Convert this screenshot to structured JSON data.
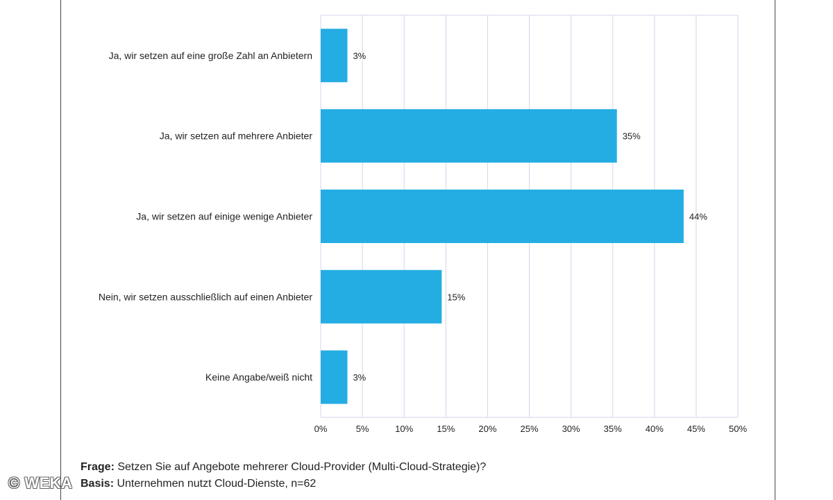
{
  "chart_data": {
    "type": "bar",
    "orientation": "horizontal",
    "categories": [
      "Ja, wir setzen auf eine große Zahl an Anbietern",
      "Ja, wir setzen auf mehrere Anbieter",
      "Ja, wir setzen auf einige wenige Anbieter",
      "Nein, wir setzen ausschließlich auf einen Anbieter",
      "Keine Angabe/weiß nicht"
    ],
    "values": [
      3.2,
      35.5,
      43.5,
      14.5,
      3.2
    ],
    "data_labels": [
      "3%",
      "35%",
      "44%",
      "15%",
      "3%"
    ],
    "xlim": [
      0,
      50
    ],
    "x_ticks": [
      0,
      5,
      10,
      15,
      20,
      25,
      30,
      35,
      40,
      45,
      50
    ],
    "x_tick_labels": [
      "0%",
      "5%",
      "10%",
      "15%",
      "20%",
      "25%",
      "30%",
      "35%",
      "40%",
      "45%",
      "50%"
    ],
    "grid": true,
    "bar_color": "#24ADE3",
    "grid_color": "#D3D6EC"
  },
  "footer": {
    "question_label": "Frage:",
    "question_text": " Setzen Sie auf Angebote mehrerer Cloud-Provider (Multi-Cloud-Strategie)?",
    "basis_label": "Basis:",
    "basis_text": " Unternehmen nutzt Cloud-Dienste, n=62"
  },
  "watermark": "© WEKA"
}
